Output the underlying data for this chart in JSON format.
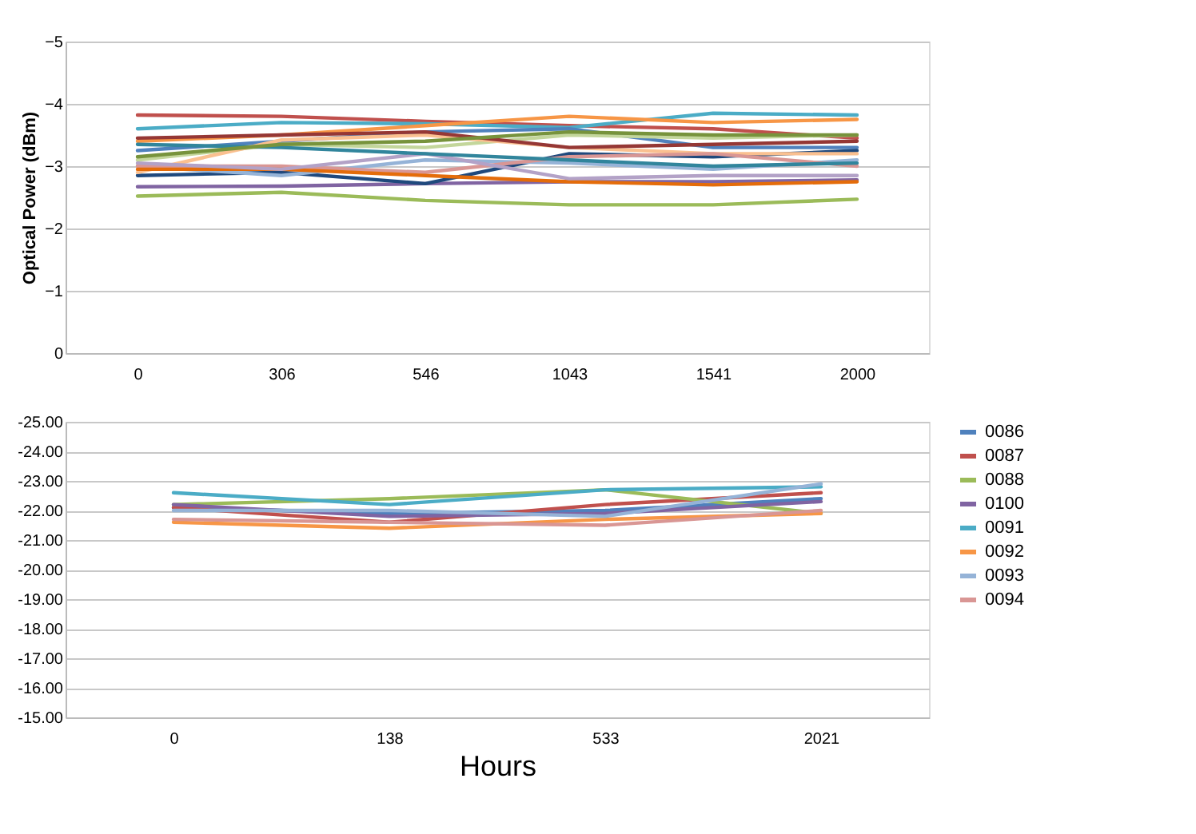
{
  "chart_data": [
    {
      "type": "line",
      "ylabel": "Optical Power (dBm)",
      "categories": [
        "0",
        "306",
        "546",
        "1043",
        "1541",
        "2000"
      ],
      "ylim": [
        0,
        -5
      ],
      "yticks": [
        0,
        -1,
        -2,
        -3,
        -4,
        -5
      ],
      "grid": "y",
      "series": [
        {
          "color": "#c0504d",
          "values": [
            -3.82,
            -3.8,
            -3.72,
            -3.65,
            -3.6,
            -3.45
          ]
        },
        {
          "color": "#4bacc6",
          "values": [
            -3.6,
            -3.7,
            -3.68,
            -3.62,
            -3.85,
            -3.82
          ]
        },
        {
          "color": "#f79646",
          "values": [
            -3.4,
            -3.5,
            -3.65,
            -3.8,
            -3.7,
            -3.75
          ]
        },
        {
          "color": "#9bbb59",
          "values": [
            -2.52,
            -2.58,
            -2.45,
            -2.38,
            -2.38,
            -2.47
          ]
        },
        {
          "color": "#8064a2",
          "values": [
            -2.67,
            -2.68,
            -2.72,
            -2.75,
            -2.75,
            -2.78
          ]
        },
        {
          "color": "#4f81bd",
          "values": [
            -3.25,
            -3.4,
            -3.55,
            -3.6,
            -3.3,
            -3.3
          ]
        },
        {
          "color": "#1f497d",
          "values": [
            -2.85,
            -2.9,
            -2.72,
            -3.2,
            -3.15,
            -3.25
          ]
        },
        {
          "color": "#c3d69b",
          "values": [
            -3.1,
            -3.35,
            -3.3,
            -3.5,
            -3.45,
            -3.5
          ]
        },
        {
          "color": "#95b3d7",
          "values": [
            -3.0,
            -2.85,
            -3.1,
            -3.05,
            -2.95,
            -3.1
          ]
        },
        {
          "color": "#fac090",
          "values": [
            -2.9,
            -3.42,
            -3.5,
            -3.3,
            -3.2,
            -3.2
          ]
        },
        {
          "color": "#953735",
          "values": [
            -3.45,
            -3.5,
            -3.55,
            -3.3,
            -3.35,
            -3.4
          ]
        },
        {
          "color": "#d99694",
          "values": [
            -3.0,
            -3.0,
            -2.9,
            -3.15,
            -3.2,
            -3.0
          ]
        },
        {
          "color": "#e46c0a",
          "values": [
            -2.95,
            -2.95,
            -2.85,
            -2.75,
            -2.7,
            -2.75
          ]
        },
        {
          "color": "#b3a2c7",
          "values": [
            -3.05,
            -2.95,
            -3.2,
            -2.8,
            -2.85,
            -2.85
          ]
        },
        {
          "color": "#31859c",
          "values": [
            -3.35,
            -3.3,
            -3.2,
            -3.1,
            -3.0,
            -3.05
          ]
        },
        {
          "color": "#77933c",
          "values": [
            -3.15,
            -3.35,
            -3.4,
            -3.55,
            -3.5,
            -3.5
          ]
        }
      ]
    },
    {
      "type": "line",
      "xlabel": "Hours",
      "categories": [
        "0",
        "138",
        "533",
        "2021"
      ],
      "ylim": [
        -15,
        -25
      ],
      "yticks": [
        {
          "value": -15,
          "label": "-15.00"
        },
        {
          "value": -16,
          "label": "-16.00"
        },
        {
          "value": -17,
          "label": "-17.00"
        },
        {
          "value": -18,
          "label": "-18.00"
        },
        {
          "value": -19,
          "label": "-19.00"
        },
        {
          "value": -20,
          "label": "-20.00"
        },
        {
          "value": -21,
          "label": "-21.00"
        },
        {
          "value": -22,
          "label": "-22.00"
        },
        {
          "value": -23,
          "label": "-23.00"
        },
        {
          "value": -24,
          "label": "-24.00"
        },
        {
          "value": -25,
          "label": "-25.00"
        }
      ],
      "grid": "y",
      "legend": "right",
      "series": [
        {
          "name": "0086",
          "color": "#4f81bd",
          "values": [
            -22.1,
            -21.9,
            -22.0,
            -22.4
          ]
        },
        {
          "name": "0087",
          "color": "#c0504d",
          "values": [
            -22.1,
            -21.6,
            -22.2,
            -22.6
          ]
        },
        {
          "name": "0088",
          "color": "#9bbb59",
          "values": [
            -22.2,
            -22.4,
            -22.7,
            -21.9
          ]
        },
        {
          "name": "0100",
          "color": "#8064a2",
          "values": [
            -22.2,
            -21.8,
            -21.9,
            -22.3
          ]
        },
        {
          "name": "0091",
          "color": "#4bacc6",
          "values": [
            -22.6,
            -22.2,
            -22.7,
            -22.8
          ]
        },
        {
          "name": "0092",
          "color": "#f79646",
          "values": [
            -21.6,
            -21.4,
            -21.7,
            -21.9
          ]
        },
        {
          "name": "0093",
          "color": "#95b3d7",
          "values": [
            -22.0,
            -22.0,
            -21.8,
            -22.9
          ]
        },
        {
          "name": "0094",
          "color": "#d99694",
          "values": [
            -21.7,
            -21.6,
            -21.5,
            -22.0
          ]
        }
      ]
    }
  ]
}
